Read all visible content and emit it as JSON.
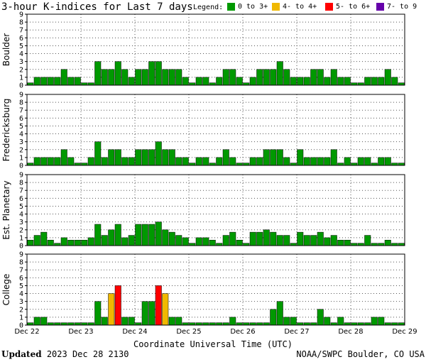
{
  "title": "3-hour K-indices for Last 7 days",
  "legend": {
    "label": "Legend:",
    "items": [
      {
        "label": "0 to 3+",
        "color": "#009900"
      },
      {
        "label": "4- to 4+",
        "color": "#f0b800"
      },
      {
        "label": "5- to 6+",
        "color": "#ff0000"
      },
      {
        "label": "7- to 9",
        "color": "#6600aa"
      }
    ]
  },
  "footer": {
    "updated_label": "Updated",
    "updated_value": "2023 Dec 28 2130",
    "source": "NOAA/SWPC Boulder, CO USA"
  },
  "chart_data": {
    "type": "bar",
    "xlabel": "Coordinate Universal Time (UTC)",
    "x_ticks": [
      "Dec 22",
      "Dec 23",
      "Dec 24",
      "Dec 25",
      "Dec 26",
      "Dec 27",
      "Dec 28",
      "Dec 29"
    ],
    "ylim": [
      0,
      9
    ],
    "y_ticks": [
      0,
      1,
      2,
      3,
      4,
      5,
      6,
      7,
      8,
      9
    ],
    "grid": true,
    "bars_per_day": 8,
    "panels": [
      {
        "name": "Boulder",
        "values": [
          0.3,
          1,
          1,
          1,
          1,
          2,
          1,
          1,
          0.3,
          0.3,
          3,
          2,
          2,
          3,
          2,
          1,
          2,
          2,
          3,
          3,
          2,
          2,
          2,
          1,
          0.3,
          1,
          1,
          0.3,
          1,
          2,
          2,
          1,
          0.3,
          1,
          2,
          2,
          2,
          3,
          2,
          1,
          1,
          1,
          2,
          2,
          1,
          2,
          1,
          1,
          0.3,
          0.3,
          1,
          1,
          1,
          2,
          1,
          0.3
        ]
      },
      {
        "name": "Fredericksburg",
        "values": [
          0.3,
          1,
          1,
          1,
          1,
          2,
          1,
          0.3,
          0.3,
          1,
          3,
          1,
          2,
          2,
          1,
          1,
          2,
          2,
          2,
          3,
          2,
          2,
          1,
          1,
          0.3,
          1,
          1,
          0.3,
          1,
          2,
          1,
          0.3,
          0.3,
          1,
          1,
          2,
          2,
          2,
          1,
          0.3,
          2,
          1,
          1,
          1,
          1,
          2,
          0.3,
          1,
          0.3,
          1,
          1,
          0.3,
          1,
          1,
          0.3,
          0.3
        ]
      },
      {
        "name": "Est. Planetary",
        "values": [
          0.7,
          1.3,
          1.7,
          0.7,
          0.3,
          1,
          0.7,
          0.7,
          0.7,
          1,
          2.7,
          1.3,
          2,
          2.7,
          1,
          1.3,
          2.7,
          2.7,
          2.7,
          3,
          2,
          1.7,
          1.3,
          1,
          0.3,
          1,
          1,
          0.7,
          0.3,
          1.3,
          1.7,
          0.7,
          0.3,
          1.7,
          1.7,
          2,
          1.7,
          1.3,
          1.3,
          0.3,
          1.7,
          1.3,
          1.3,
          1.7,
          1,
          1.3,
          0.7,
          0.7,
          0.3,
          0.3,
          1.3,
          0.3,
          0.3,
          0.7,
          0.3,
          0.3
        ]
      },
      {
        "name": "College",
        "values": [
          0.3,
          1,
          1,
          0.3,
          0.3,
          0.3,
          0.3,
          0.3,
          0.3,
          0.3,
          3,
          1,
          4,
          5,
          1,
          1,
          0.3,
          3,
          3,
          5,
          4,
          1,
          1,
          0.3,
          0.3,
          0.3,
          0.3,
          0.3,
          0.3,
          0.3,
          1,
          0.3,
          0.3,
          0.3,
          0.3,
          0.3,
          2,
          3,
          1,
          1,
          0.3,
          0.3,
          0.3,
          2,
          1,
          0.3,
          1,
          0.3,
          0.3,
          0.3,
          0.3,
          1,
          1,
          0.3,
          0.3,
          0.3
        ]
      }
    ]
  }
}
